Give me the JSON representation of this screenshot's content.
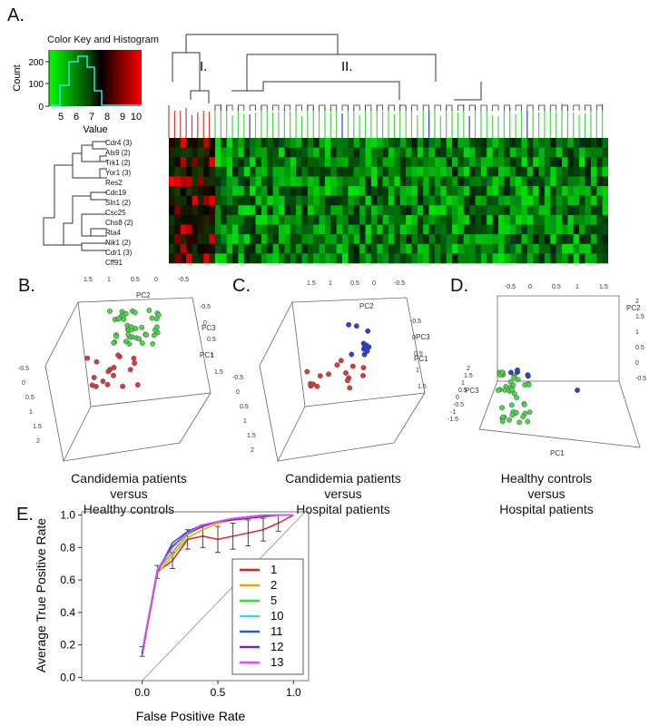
{
  "panels": {
    "a": {
      "letter": "A.",
      "clusters": [
        "I.",
        "II."
      ]
    },
    "b": {
      "letter": "B."
    },
    "c": {
      "letter": "C."
    },
    "d": {
      "letter": "D."
    },
    "e": {
      "letter": "E."
    }
  },
  "color_key": {
    "title": "Color Key and Histogram",
    "ylabel": "Count",
    "xlabel": "Value",
    "yticks": [
      "0",
      "100",
      "200"
    ],
    "xticks": [
      "5",
      "6",
      "7",
      "8",
      "9",
      "10"
    ]
  },
  "genes": [
    "Cdr4 (3)",
    "Als9 (2)",
    "Trk1 (2)",
    "Yor1 (3)",
    "Res2",
    "Cdc19",
    "Sln1 (2)",
    "Csc25",
    "Chs8 (2)",
    "Rta4",
    "Nik1 (2)",
    "Cdr1 (3)",
    "Cff91"
  ],
  "colors": {
    "candidemia": "#d93b3b",
    "healthy": "#4fd24f",
    "hospital": "#2f3fd0",
    "heatmap_high": "#ff0000",
    "heatmap_low": "#00ff00"
  },
  "pca": {
    "b": {
      "caption": [
        "Candidemia patients",
        "versus",
        "Healthy controls"
      ],
      "axes": [
        "PC2",
        "PC3",
        "PC1"
      ],
      "ticks_top": [
        "-0.5",
        "0",
        "0.5",
        "1",
        "1.5"
      ],
      "ticks_left": [
        "-0.5",
        "0",
        "0.5",
        "1",
        "1.5",
        "2"
      ],
      "ticks_right": [
        "-0.5",
        "0",
        "0.5",
        "1",
        "1.5"
      ]
    },
    "c": {
      "caption": [
        "Candidemia patients",
        "versus",
        "Hospital patients"
      ],
      "axes": [
        "PC2",
        "PC3",
        "PC1"
      ],
      "ticks_top": [
        "-0.5",
        "0",
        "0.5",
        "1",
        "1.5"
      ],
      "ticks_left": [
        "-0.5",
        "0",
        "0.5",
        "1",
        "1.5",
        "2"
      ],
      "ticks_right": [
        "-0.5",
        "0",
        "0.5",
        "1",
        "1.5"
      ]
    },
    "d": {
      "caption": [
        "Healthy controls",
        "versus",
        "Hospital patients"
      ],
      "axes": [
        "PC1",
        "PC3",
        "PC2"
      ],
      "ticks_top": [
        "-0.5",
        "0",
        "0.5",
        "1",
        "1.5"
      ],
      "ticks_right": [
        "-0.5",
        "0",
        "0.5",
        "1",
        "1.5",
        "2"
      ],
      "ticks_left": [
        "-1.5",
        "-1",
        "-0.5",
        "0",
        "0.5",
        "1",
        "1.5",
        "2"
      ],
      "ticks_bottom": [
        "-0.5",
        "0",
        "0.5",
        "1",
        "1.5"
      ]
    }
  },
  "chart_data": {
    "type": "line",
    "xlabel": "False Positive Rate",
    "ylabel": "Average True Positive Rate",
    "xlim": [
      -0.4,
      1.1
    ],
    "ylim": [
      -0.02,
      1.02
    ],
    "xticks": [
      "0.0",
      "0.5",
      "1.0"
    ],
    "yticks": [
      "0.0",
      "0.2",
      "0.4",
      "0.6",
      "0.8",
      "1.0"
    ],
    "legend_position": "center-right",
    "x": [
      0.0,
      0.1,
      0.2,
      0.3,
      0.4,
      0.5,
      0.6,
      0.7,
      0.8,
      0.9,
      1.0
    ],
    "series": [
      {
        "name": "1",
        "color": "#e02020",
        "values": [
          0.16,
          0.65,
          0.72,
          0.85,
          0.87,
          0.85,
          0.87,
          0.89,
          0.91,
          0.95,
          1.0
        ],
        "errors": [
          0.03,
          0.04,
          0.05,
          0.06,
          0.07,
          0.08,
          0.08,
          0.08,
          0.07,
          0.05,
          0.0
        ]
      },
      {
        "name": "2",
        "color": "#f0a000",
        "values": [
          0.15,
          0.64,
          0.75,
          0.86,
          0.91,
          0.95,
          0.97,
          0.98,
          0.99,
          1.0,
          1.0
        ]
      },
      {
        "name": "5",
        "color": "#30e030",
        "values": [
          0.16,
          0.66,
          0.77,
          0.88,
          0.93,
          0.96,
          0.98,
          0.99,
          1.0,
          1.0,
          1.0
        ]
      },
      {
        "name": "10",
        "color": "#40d8d8",
        "values": [
          0.17,
          0.67,
          0.8,
          0.9,
          0.94,
          0.96,
          0.98,
          0.99,
          1.0,
          1.0,
          1.0
        ]
      },
      {
        "name": "11",
        "color": "#1f5fd0",
        "values": [
          0.15,
          0.65,
          0.83,
          0.9,
          0.94,
          0.96,
          0.98,
          0.99,
          1.0,
          1.0,
          1.0
        ]
      },
      {
        "name": "12",
        "color": "#7a2aa0",
        "values": [
          0.14,
          0.65,
          0.81,
          0.89,
          0.93,
          0.96,
          0.97,
          0.98,
          0.99,
          1.0,
          1.0
        ]
      },
      {
        "name": "13",
        "color": "#ff40ff",
        "values": [
          0.16,
          0.66,
          0.8,
          0.89,
          0.94,
          0.96,
          0.98,
          0.99,
          1.0,
          1.0,
          1.0
        ]
      }
    ]
  }
}
